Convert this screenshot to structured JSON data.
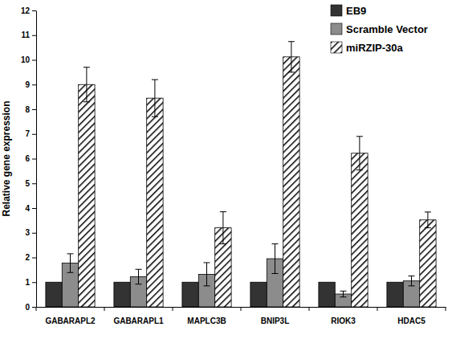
{
  "chart_data": {
    "type": "bar",
    "y_label": "Relative gene expression",
    "categories": [
      "GABARAPL2",
      "GABARAPL1",
      "MAPLC3B",
      "BNIP3L",
      "RIOK3",
      "HDAC5"
    ],
    "series": [
      {
        "name": "EB9",
        "color": "#333333",
        "values": [
          1,
          1,
          1,
          1,
          1,
          1
        ]
      },
      {
        "name": "Scramble Vector",
        "color": "#8c8c8c",
        "values": [
          1.77,
          1.22,
          1.32,
          1.95,
          0.52,
          1.05
        ],
        "errors": [
          0.38,
          0.3,
          0.47,
          0.6,
          0.12,
          0.2
        ]
      },
      {
        "name": "miRZIP-30a",
        "color": "#000000",
        "values": [
          9.0,
          8.45,
          3.2,
          10.12,
          6.22,
          3.52
        ],
        "errors": [
          0.7,
          0.75,
          0.65,
          0.62,
          0.68,
          0.32
        ]
      }
    ],
    "ylim": [
      0,
      12
    ],
    "yticks": [
      0,
      1,
      2,
      3,
      4,
      5,
      6,
      7,
      8,
      9,
      10,
      11,
      12
    ],
    "grid": false,
    "legend": "top-right"
  }
}
